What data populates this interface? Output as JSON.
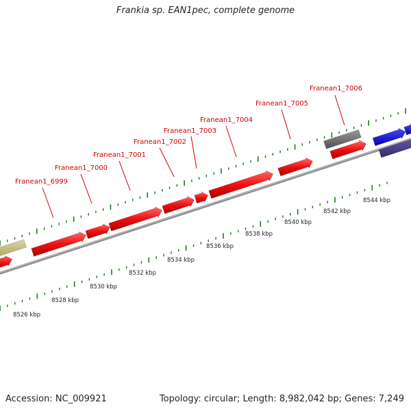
{
  "title": "Frankia sp. EAN1pec, complete genome",
  "accession": "Accession: NC_009921",
  "summary": "Topology: circular; Length: 8,982,042 bp; Genes: 7,249",
  "colors": {
    "forward_gene": "#ee1111",
    "gene_label": "#cc0000",
    "tick": "#1a7a1a",
    "backbone": "#888888",
    "olive_gene": "#c8c080",
    "grey_gene": "#707070",
    "blue_gene": "#1010dd",
    "navy_gene": "#4a4090"
  },
  "gene_labels": [
    "Franean1_6999",
    "Franean1_7000",
    "Franean1_7001",
    "Franean1_7002",
    "Franean1_7003",
    "Franean1_7004",
    "Franean1_7005",
    "Franean1_7006"
  ],
  "kbp_labels": [
    "8526 kbp",
    "8528 kbp",
    "8530 kbp",
    "8532 kbp",
    "8534 kbp",
    "8536 kbp",
    "8538 kbp",
    "8540 kbp",
    "8542 kbp",
    "8544 kbp"
  ]
}
